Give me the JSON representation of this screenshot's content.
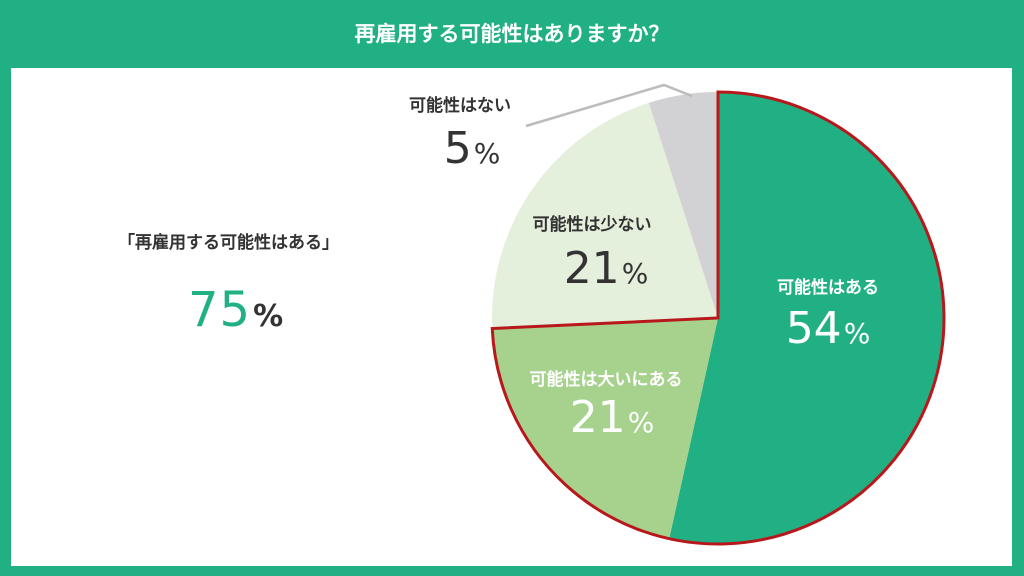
{
  "title": "再雇用する可能性はありますか？",
  "summary": {
    "label": "「再雇用する可能性はある」",
    "value": "75",
    "unit": "%"
  },
  "colors": {
    "frame": "#21b083",
    "accent": "#21b083",
    "highlight_border": "#b8181c"
  },
  "chart_data": {
    "type": "pie",
    "title": "再雇用する可能性はありますか？",
    "slices": [
      {
        "label": "可能性はある",
        "value": 54,
        "display": "54",
        "unit": "%",
        "color": "#21b083",
        "text_color": "#ffffff"
      },
      {
        "label": "可能性は大いにある",
        "value": 21,
        "display": "21",
        "unit": "%",
        "color": "#a7d28d",
        "text_color": "#ffffff"
      },
      {
        "label": "可能性は少ない",
        "value": 21,
        "display": "21",
        "unit": "%",
        "color": "#e4efdc",
        "text_color": "#333333"
      },
      {
        "label": "可能性はない",
        "value": 5,
        "display": "5",
        "unit": "%",
        "color": "#d2d1d3",
        "text_color": "#333333"
      }
    ],
    "highlighted": [
      "可能性はある",
      "可能性は大いにある"
    ]
  }
}
